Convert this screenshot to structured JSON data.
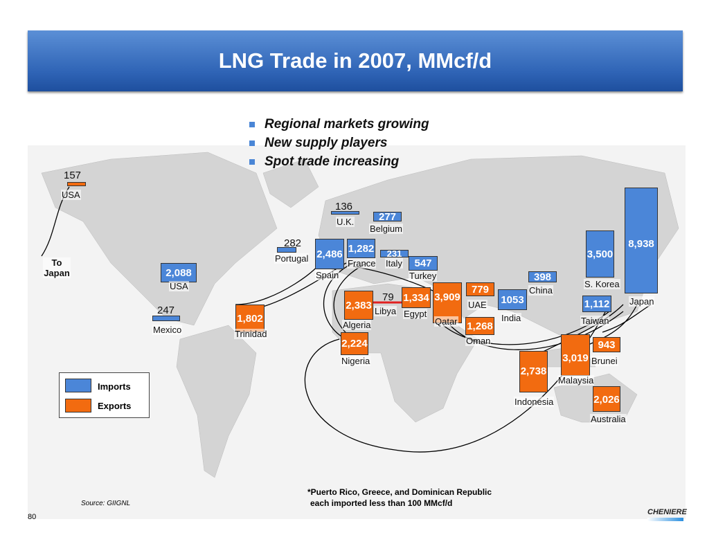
{
  "title": "LNG Trade in 2007, MMcf/d",
  "bullets": [
    "Regional markets growing",
    "New supply players",
    "Spot trade increasing"
  ],
  "colors": {
    "imports": "#4b86d8",
    "exports": "#f26b10"
  },
  "to_japan": "To Japan",
  "imports": [
    {
      "country": "USA",
      "value": "157"
    },
    {
      "country": "USA",
      "value": "2,088"
    },
    {
      "country": "Mexico",
      "value": "247"
    },
    {
      "country": "Portugal",
      "value": "282"
    },
    {
      "country": "Spain",
      "value": "2,486"
    },
    {
      "country": "U.K.",
      "value": "136"
    },
    {
      "country": "Belgium",
      "value": "277"
    },
    {
      "country": "France",
      "value": "1,282"
    },
    {
      "country": "Italy",
      "value": "231"
    },
    {
      "country": "Turkey",
      "value": "547"
    },
    {
      "country": "India",
      "value": "1053"
    },
    {
      "country": "China",
      "value": "398"
    },
    {
      "country": "Taiwan",
      "value": "1,112"
    },
    {
      "country": "S. Korea",
      "value": "3,500"
    },
    {
      "country": "Japan",
      "value": "8,938"
    }
  ],
  "exports": [
    {
      "country": "Trinidad",
      "value": "1,802"
    },
    {
      "country": "Algeria",
      "value": "2,383"
    },
    {
      "country": "Libya",
      "value": "79"
    },
    {
      "country": "Egypt",
      "value": "1,334"
    },
    {
      "country": "Qatar",
      "value": "3,909"
    },
    {
      "country": "UAE",
      "value": "779"
    },
    {
      "country": "Oman",
      "value": "1,268"
    },
    {
      "country": "Nigeria",
      "value": "2,224"
    },
    {
      "country": "Indonesia",
      "value": "2,738"
    },
    {
      "country": "Malaysia",
      "value": "3,019"
    },
    {
      "country": "Brunei",
      "value": "943"
    },
    {
      "country": "Australia",
      "value": "2,026"
    }
  ],
  "legend": {
    "imports": "Imports",
    "exports": "Exports"
  },
  "footnote": [
    "*Puerto Rico, Greece, and Dominican Republic",
    "each imported less than 100 MMcf/d"
  ],
  "source": "Source: GIIGNL",
  "page_number": "80",
  "logo": "CHENIERE"
}
